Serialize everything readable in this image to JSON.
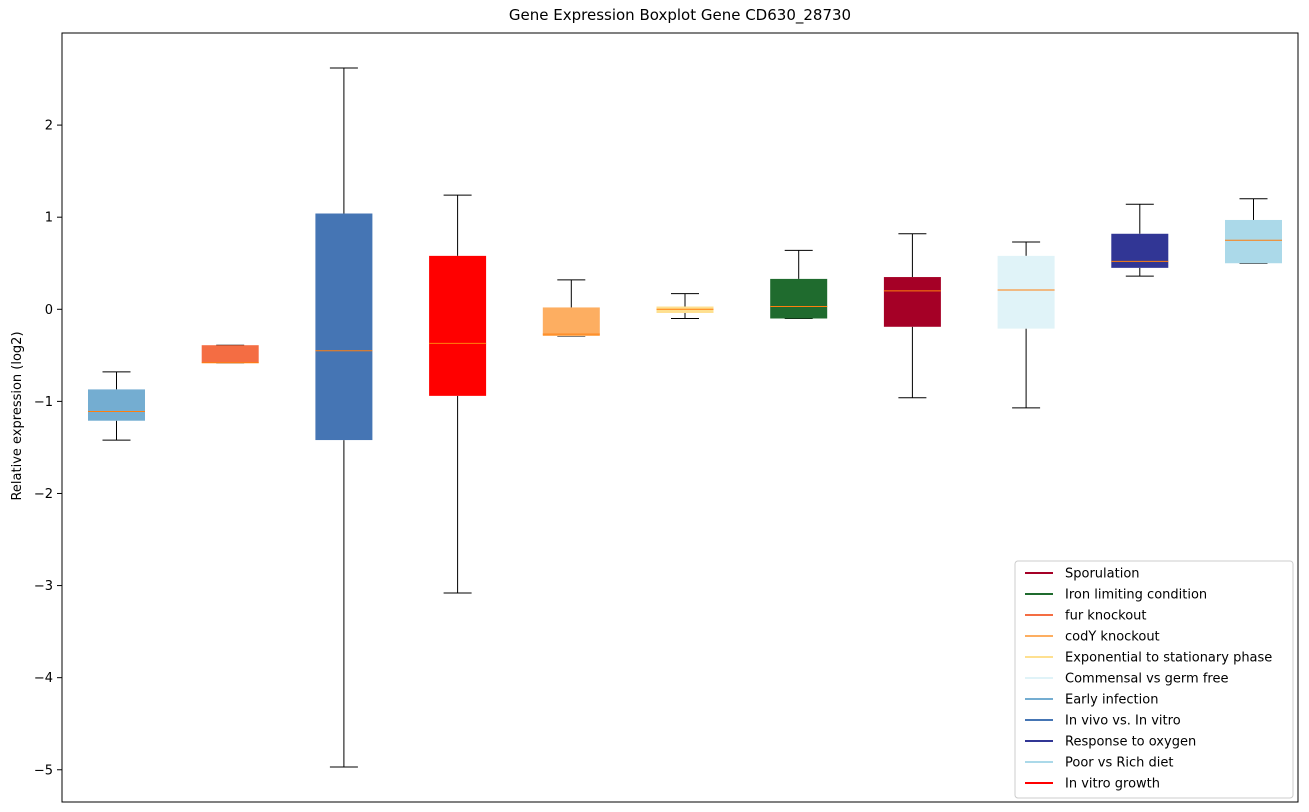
{
  "chart_data": {
    "type": "boxplot",
    "title": "Gene Expression Boxplot Gene CD630_28730",
    "xlabel": "",
    "ylabel": "Relative expression (log2)",
    "ylim": [
      -5.35,
      3.0
    ],
    "yticks": [
      -5,
      -4,
      -3,
      -2,
      -1,
      0,
      1,
      2
    ],
    "ytick_labels": [
      "−5",
      "−4",
      "−3",
      "−2",
      "−1",
      "0",
      "1",
      "2"
    ],
    "grid": false,
    "legend_position": "lower-right",
    "median_color": "#ff7f0e",
    "boxes": [
      {
        "color": "#74add1",
        "whisker_low": -1.42,
        "q1": -1.21,
        "median": -1.11,
        "q3": -0.87,
        "whisker_high": -0.68
      },
      {
        "color": "#f46d43",
        "whisker_low": -0.58,
        "q1": -0.58,
        "median": -0.58,
        "q3": -0.39,
        "whisker_high": -0.39
      },
      {
        "color": "#4575b4",
        "whisker_low": -4.97,
        "q1": -1.42,
        "median": -0.45,
        "q3": 1.04,
        "whisker_high": 2.62
      },
      {
        "color": "#ff0000",
        "whisker_low": -3.08,
        "q1": -0.94,
        "median": -0.37,
        "q3": 0.58,
        "whisker_high": 1.24
      },
      {
        "color": "#fdae61",
        "whisker_low": -0.29,
        "q1": -0.29,
        "median": -0.27,
        "q3": 0.02,
        "whisker_high": 0.32
      },
      {
        "color": "#fee090",
        "whisker_low": -0.1,
        "q1": -0.04,
        "median": 0.0,
        "q3": 0.03,
        "whisker_high": 0.17
      },
      {
        "color": "#1f6b2e",
        "whisker_low": -0.1,
        "q1": -0.1,
        "median": 0.03,
        "q3": 0.33,
        "whisker_high": 0.64
      },
      {
        "color": "#a50026",
        "whisker_low": -0.96,
        "q1": -0.19,
        "median": 0.2,
        "q3": 0.35,
        "whisker_high": 0.82
      },
      {
        "color": "#e0f3f8",
        "whisker_low": -1.07,
        "q1": -0.21,
        "median": 0.21,
        "q3": 0.58,
        "whisker_high": 0.73
      },
      {
        "color": "#313695",
        "whisker_low": 0.36,
        "q1": 0.45,
        "median": 0.52,
        "q3": 0.82,
        "whisker_high": 1.14
      },
      {
        "color": "#abd9e9",
        "whisker_low": 0.5,
        "q1": 0.5,
        "median": 0.75,
        "q3": 0.97,
        "whisker_high": 1.2
      }
    ],
    "legend": [
      {
        "label": "Sporulation",
        "color": "#a50026"
      },
      {
        "label": "Iron limiting condition",
        "color": "#1f6b2e"
      },
      {
        "label": "fur knockout",
        "color": "#f46d43"
      },
      {
        "label": "codY knockout",
        "color": "#fdae61"
      },
      {
        "label": "Exponential to stationary phase",
        "color": "#fee090"
      },
      {
        "label": "Commensal vs germ free",
        "color": "#e0f3f8"
      },
      {
        "label": "Early infection",
        "color": "#74add1"
      },
      {
        "label": "In vivo vs. In vitro",
        "color": "#4575b4"
      },
      {
        "label": "Response to oxygen",
        "color": "#313695"
      },
      {
        "label": "Poor vs Rich diet",
        "color": "#abd9e9"
      },
      {
        "label": "In vitro growth",
        "color": "#ff0000"
      }
    ]
  }
}
